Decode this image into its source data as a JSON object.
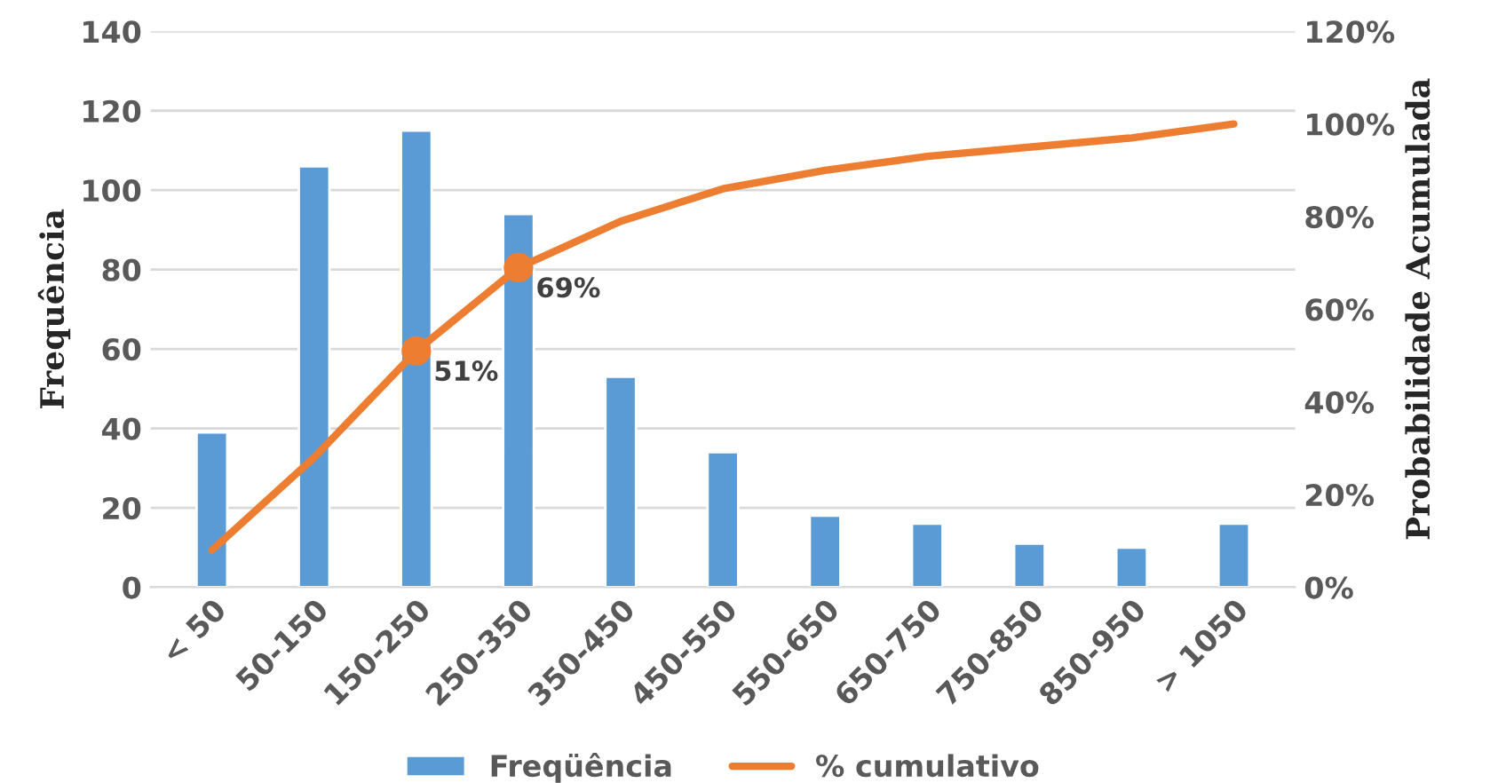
{
  "chart_data": {
    "type": "bar",
    "categories": [
      "< 50",
      "50-150",
      "150-250",
      "250-350",
      "350-450",
      "450-550",
      "550-650",
      "650-750",
      "750-850",
      "850-950",
      "> 1050"
    ],
    "ylabel": "Frequência",
    "y2label": "Probabilidade Acumulada",
    "ylim": [
      0,
      140
    ],
    "yticks": [
      0,
      20,
      40,
      60,
      80,
      100,
      120,
      140
    ],
    "y2lim": [
      0,
      120
    ],
    "y2ticks": [
      {
        "value": 0,
        "label": "0%"
      },
      {
        "value": 20,
        "label": "20%"
      },
      {
        "value": 40,
        "label": "40%"
      },
      {
        "value": 60,
        "label": "60%"
      },
      {
        "value": 80,
        "label": "80%"
      },
      {
        "value": 100,
        "label": "100%"
      },
      {
        "value": 120,
        "label": "120%"
      }
    ],
    "grid": "y",
    "legend": "bottom",
    "series": [
      {
        "name": "Freqüência",
        "color": "#5b9bd5",
        "values": [
          39,
          106,
          115,
          94,
          53,
          34,
          18,
          16,
          11,
          10,
          16
        ]
      },
      {
        "name": "% cumulativo",
        "type": "line",
        "axis": "y2",
        "color": "#ed7d31",
        "values": [
          8,
          28,
          51,
          69,
          79,
          86,
          90,
          93,
          95,
          97,
          100
        ]
      },
      {
        "type": "scatter",
        "axis": "y2",
        "color": "#ed7d31",
        "marker": "circle",
        "values": [
          null,
          null,
          51,
          69,
          null,
          null,
          null,
          null,
          null,
          null,
          null
        ],
        "value_labels": [
          null,
          null,
          "51%",
          "69%",
          null,
          null,
          null,
          null,
          null,
          null,
          null
        ]
      }
    ]
  }
}
